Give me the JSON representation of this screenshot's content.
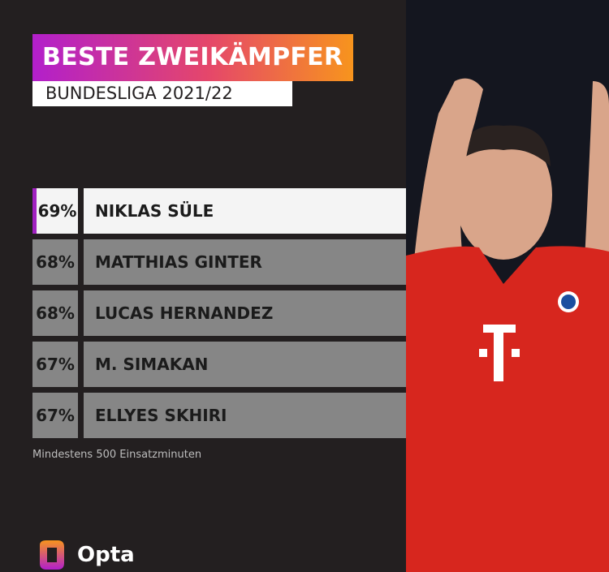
{
  "header": {
    "title": "BESTE ZWEIKÄMPFER",
    "subtitle": "BUNDESLIGA 2021/22"
  },
  "table": {
    "rows": [
      [
        "69%",
        "NIKLAS SÜLE"
      ],
      [
        "68%",
        "MATTHIAS GINTER"
      ],
      [
        "68%",
        "LUCAS HERNANDEZ"
      ],
      [
        "67%",
        "M. SIMAKAN"
      ],
      [
        "67%",
        "ELLYES SKHIRI"
      ]
    ]
  },
  "footnote": "Mindestens 500 Einsatzminuten",
  "logo": "Opta"
}
